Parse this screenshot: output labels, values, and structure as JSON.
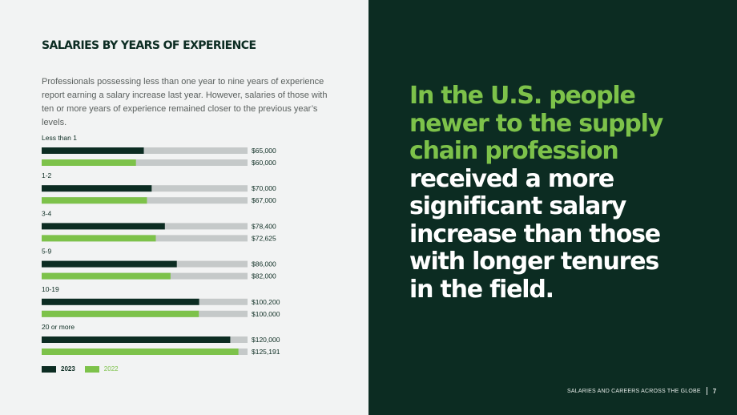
{
  "left_panel": {
    "heading": "SALARIES BY YEARS OF EXPERIENCE",
    "intro": "Professionals possessing less than one year to nine years of experience report earning a salary increase last year. However, salaries of those with ten or more years of experience remained closer to the previous year’s levels."
  },
  "chart_data": {
    "type": "bar",
    "orientation": "horizontal",
    "categories": [
      "Less than 1",
      "1-2",
      "3-4",
      "5-9",
      "10-19",
      "20 or more"
    ],
    "series": [
      {
        "name": "2023",
        "values": [
          65000,
          70000,
          78400,
          86000,
          100200,
          120000
        ],
        "labels": [
          "$65,000",
          "$70,000",
          "$78,400",
          "$86,000",
          "$100,200",
          "$120,000"
        ]
      },
      {
        "name": "2022",
        "values": [
          60000,
          67000,
          72625,
          82000,
          100000,
          125191
        ],
        "labels": [
          "$60,000",
          "$67,000",
          "$72,625",
          "$82,000",
          "$100,000",
          "$125,191"
        ]
      }
    ],
    "colors": {
      "2023": "#0c2c22",
      "2022": "#7dc24a",
      "track": "#c5c9c9"
    },
    "legend_position": "bottom-left"
  },
  "legend": {
    "item_2023": "2023",
    "item_2022": "2022"
  },
  "right_panel": {
    "quote_highlight": "In the U.S. people newer to the supply chain profession",
    "quote_rest": "received a more significant salary increase than those with longer tenures in the field."
  },
  "footer": {
    "text": "SALARIES AND CAREERS ACROSS THE GLOBE",
    "page": "7"
  },
  "colors": {
    "dark_green": "#0c2c22",
    "accent_green": "#7dc24a",
    "panel_light": "#f2f3f3"
  }
}
